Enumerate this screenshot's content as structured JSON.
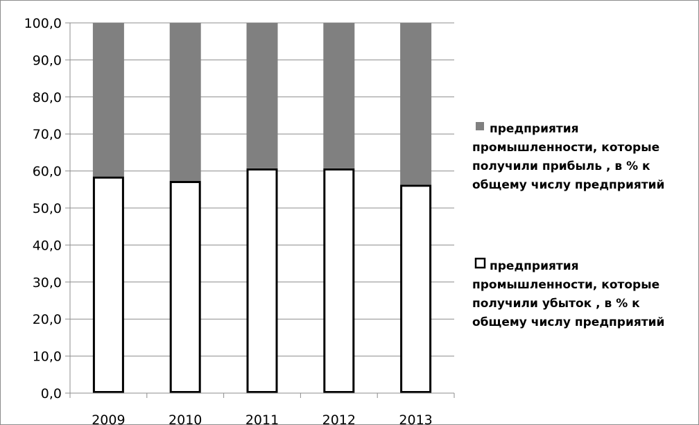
{
  "chart_data": {
    "type": "bar",
    "stacked": true,
    "categories": [
      "2009",
      "2010",
      "2011",
      "2012",
      "2013"
    ],
    "series": [
      {
        "name": "предприятия промышленности, которые получили убыток , в % к общему числу предприятий",
        "legend_lines": [
          "предприятия",
          "промышленности, которые",
          "получили убыток , в % к",
          "общему числу предприятий"
        ],
        "values": [
          58.5,
          57.3,
          60.7,
          60.7,
          56.3
        ],
        "color": "#ffffff"
      },
      {
        "name": "предприятия промышленности, которые получили прибыль , в % к общему числу предприятий",
        "legend_lines": [
          "предприятия",
          "промышленности, которые",
          "получили прибыль , в % к",
          "общему числу предприятий"
        ],
        "values": [
          41.5,
          42.7,
          39.3,
          39.3,
          43.7
        ],
        "color": "#808080"
      }
    ],
    "yticks": [
      "0,0",
      "10,0",
      "20,0",
      "30,0",
      "40,0",
      "50,0",
      "60,0",
      "70,0",
      "80,0",
      "90,0",
      "100,0"
    ],
    "ylim": [
      0,
      100
    ],
    "grid": true,
    "legend_position": "right",
    "title": "",
    "xlabel": "",
    "ylabel": ""
  }
}
